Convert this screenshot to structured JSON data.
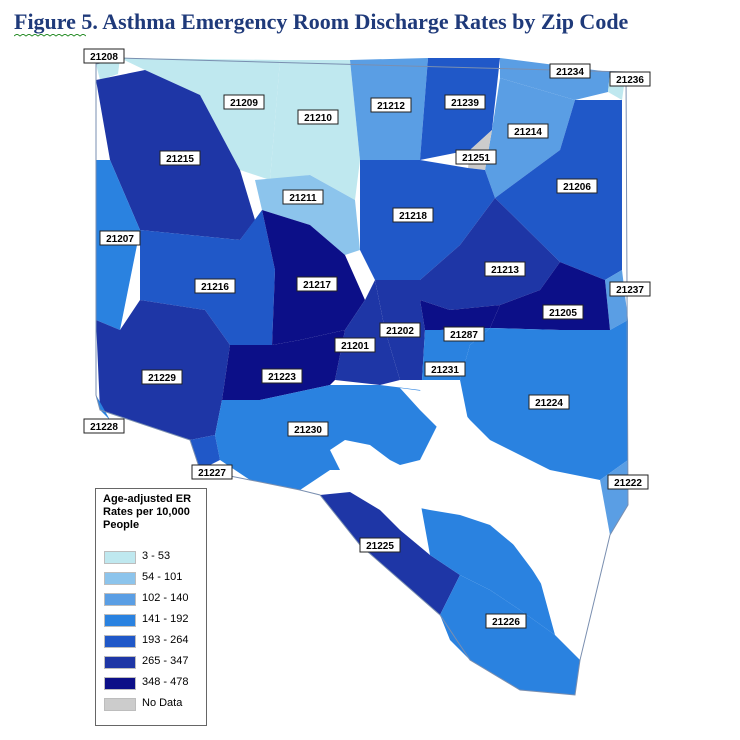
{
  "title": "Figure 5. Asthma Emergency Room Discharge Rates by Zip Code",
  "legend": {
    "title": "Age-adjusted ER Rates per 10,000 People",
    "items": [
      {
        "label": "3 - 53",
        "color": "#bfe8ef"
      },
      {
        "label": "54 - 101",
        "color": "#8cc4ec"
      },
      {
        "label": "102 - 140",
        "color": "#5a9ee4"
      },
      {
        "label": "141 - 192",
        "color": "#2a82e0"
      },
      {
        "label": "193 - 264",
        "color": "#2058c8"
      },
      {
        "label": "265 - 347",
        "color": "#1e36a6"
      },
      {
        "label": "348 - 478",
        "color": "#0c0f88"
      },
      {
        "label": "No Data",
        "color": "#cccccc"
      }
    ]
  },
  "zip_codes": [
    {
      "zip": "21208"
    },
    {
      "zip": "21209"
    },
    {
      "zip": "21210"
    },
    {
      "zip": "21212"
    },
    {
      "zip": "21239"
    },
    {
      "zip": "21234"
    },
    {
      "zip": "21236"
    },
    {
      "zip": "21214"
    },
    {
      "zip": "21251"
    },
    {
      "zip": "21215"
    },
    {
      "zip": "21211"
    },
    {
      "zip": "21218"
    },
    {
      "zip": "21206"
    },
    {
      "zip": "21207"
    },
    {
      "zip": "21213"
    },
    {
      "zip": "21216"
    },
    {
      "zip": "21217"
    },
    {
      "zip": "21237"
    },
    {
      "zip": "21205"
    },
    {
      "zip": "21202"
    },
    {
      "zip": "21287"
    },
    {
      "zip": "21201"
    },
    {
      "zip": "21229"
    },
    {
      "zip": "21223"
    },
    {
      "zip": "21231"
    },
    {
      "zip": "21224"
    },
    {
      "zip": "21228"
    },
    {
      "zip": "21230"
    },
    {
      "zip": "21227"
    },
    {
      "zip": "21222"
    },
    {
      "zip": "21225"
    },
    {
      "zip": "21226"
    }
  ]
}
